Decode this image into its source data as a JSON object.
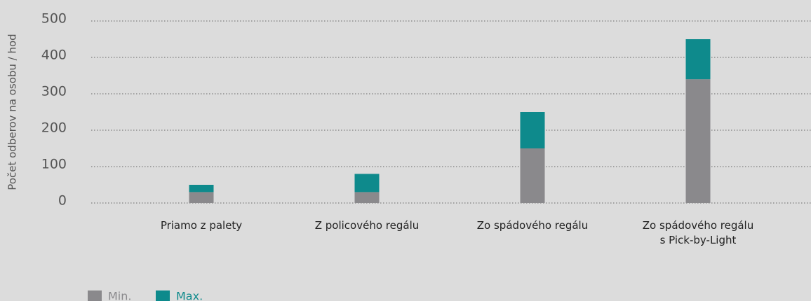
{
  "chart_data": {
    "type": "stacked_bar",
    "y_label": "Počet odberov na osobu / hod",
    "categories": [
      "Priamo z palety",
      "Z policového regálu",
      "Zo spádového regálu",
      "Zo spádového regálu\ns Pick-by-Light"
    ],
    "series": [
      {
        "name": "Min.",
        "color": "#8a898c",
        "values": [
          30,
          30,
          150,
          340
        ]
      },
      {
        "name": "Max.",
        "color": "#0e8a8c",
        "values": [
          20,
          50,
          100,
          110
        ]
      }
    ],
    "ylim": [
      0,
      500
    ],
    "yticks": [
      0,
      100,
      200,
      300,
      400,
      500
    ],
    "grid": true
  }
}
